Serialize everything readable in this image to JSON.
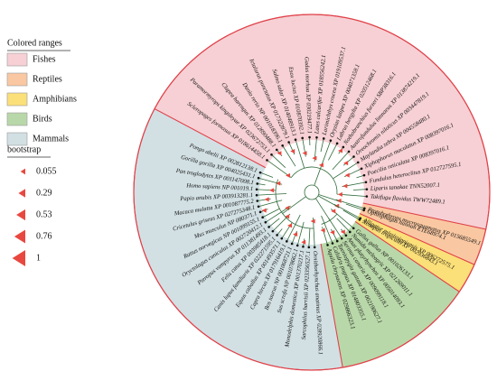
{
  "legend": {
    "title": "Colored ranges",
    "items": [
      {
        "label": "Fishes",
        "color": "#f6d0d4",
        "leaves": [
          "Scleropages formosus XP 018614450.1",
          "Paramormyrops kingsleyae XP 023672753.1",
          "Clupea harengus XP 012690488.1",
          "Danio rerio NP 001018396.1",
          "Ictalurus punctatus XP 017322879.1",
          "Salmo salar XP 014048913.1",
          "Esox lucius XP 010870392.1",
          "Gadus morhua XP 030219477.1",
          "Lates calcarifer XP 018556242.1",
          "Larimichthys crocea XP 019109537.1",
          "Oryzias latipes XP 004071358.1",
          "Labrus bergylta XP 020512468.1",
          "Nothobranchius furzeri SBP38316.1",
          "Austrofundulus limnaeus XP 013874219.1",
          "Oreochromis niloticus XP 003447819.1",
          "Maylandia zebra XP 004558480.1",
          "Xiphophorus maculatus XP 008397016.1",
          "Poecilia reticulata XP 008397016.1",
          "Fundulus heteroclitus XP 012727595.1",
          "Liparis tanakae TNN52007.1",
          "Takifugu flavidus TWW72489.1"
        ]
      },
      {
        "label": "Reptiles",
        "color": "#f9c8a2",
        "leaves": [
          "Protobothrops mucrosquamatus XP 015685549.1",
          "Ophiophagus hannah ETE68974.1"
        ]
      },
      {
        "label": "Amphibians",
        "color": "#fbdf78",
        "leaves": [
          "Alligator mississippiensis XP 006272575.1",
          "Xenopus tropicalis XP 002936843.1"
        ]
      },
      {
        "label": "Birds",
        "color": "#b9d8a9",
        "leaves": [
          "Gallus gallus NP 001026133.1",
          "Numida meleagris XP 021269011.1",
          "Anas platyrhynchos XP 005014093.1",
          "Serinus canaria XP 009099118.1",
          "Taeniopygia guttata XP 002190627.1",
          "Calidris pugnax XP 014803355.1",
          "Aquila chrysaetos XP 029866323.1"
        ]
      },
      {
        "label": "Mammals",
        "color": "#d2e0e4",
        "leaves": [
          "Ornithorhynchus anatinus XP 028920866.1",
          "Sarcophilus harrisii XP 023356527.1",
          "Monodelphis domestica XP 001370217.1",
          "Sus scrofa NP 001078662.1",
          "Bos taurus NP 001068721.1",
          "Capra hircus XP 017916419.1",
          "Equus caballus XP 001493571.1",
          "Canis lupus familiaris XP 022271595.1",
          "Felis catus XP 003985418.1",
          "Pteropus vampyrus XP 011381493.1",
          "Oryctolagus cuniculus XP 002720412.1",
          "Rattus norvegicus NP 001099155.1",
          "Mus musculus NP 080371.1",
          "Cricetulus griseus XP 027275348.1",
          "Macaca mulatta XP 001087775.2",
          "Papio anubis XP 003913281.1",
          "Homo sapiens NP 001019.1",
          "Pan troglodytes XP 001147008.1",
          "Gorilla gorilla XP 004025431.1",
          "Pongo abelii XP 002812138.1"
        ]
      }
    ]
  },
  "bootstrap": {
    "title": "bootstrap",
    "values": [
      0.055,
      0.29,
      0.53,
      0.76,
      1
    ]
  }
}
